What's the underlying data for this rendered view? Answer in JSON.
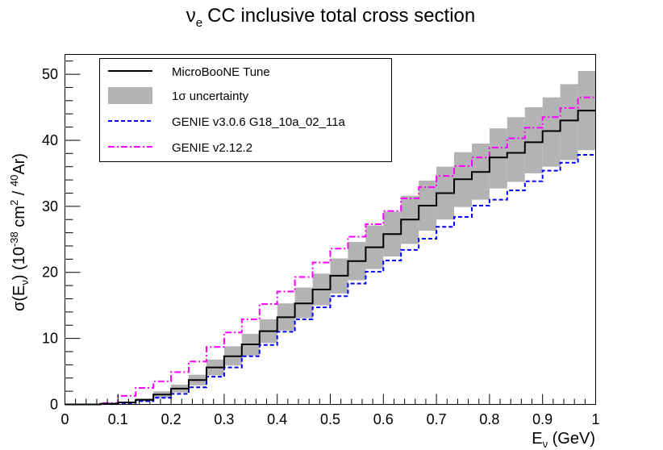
{
  "chart_data": {
    "type": "line",
    "title": {
      "main": "CC inclusive total cross section",
      "symbol": "ν",
      "sub": "e"
    },
    "xlabel": {
      "text": "E",
      "sub": "ν",
      "unit": " (GeV)"
    },
    "ylabel": {
      "pre": "σ(E",
      "sub": "ν",
      "mid": ") (10",
      "exp1": "-38",
      "mid2": " cm",
      "exp2": "2",
      "mid3": " / ",
      "exp3": "40",
      "post": "Ar)"
    },
    "xlim": [
      0,
      1
    ],
    "ylim": [
      0,
      53
    ],
    "x_ticks": [
      0,
      0.1,
      0.2,
      0.3,
      0.4,
      0.5,
      0.6,
      0.7,
      0.8,
      0.9,
      1
    ],
    "x_tick_labels": [
      "0",
      "0.1",
      "0.2",
      "0.3",
      "0.4",
      "0.5",
      "0.6",
      "0.7",
      "0.8",
      "0.9",
      "1"
    ],
    "y_ticks": [
      0,
      10,
      20,
      30,
      40,
      50
    ],
    "y_tick_labels": [
      "0",
      "10",
      "20",
      "30",
      "40",
      "50"
    ],
    "bin_edges": [
      0,
      0.0333,
      0.0667,
      0.1,
      0.1333,
      0.1667,
      0.2,
      0.2333,
      0.2667,
      0.3,
      0.3333,
      0.3667,
      0.4,
      0.4333,
      0.4667,
      0.5,
      0.5333,
      0.5667,
      0.6,
      0.6333,
      0.6667,
      0.7,
      0.7333,
      0.7667,
      0.8,
      0.8333,
      0.8667,
      0.9,
      0.9333,
      0.9667,
      1.0
    ],
    "series": [
      {
        "name": "MicroBooNE Tune",
        "legend": "MicroBooNE Tune",
        "style": "solid",
        "color": "#000000",
        "values": [
          0,
          0,
          0.1,
          0.3,
          0.7,
          1.5,
          2.4,
          3.7,
          5.6,
          7.3,
          9.1,
          11.1,
          13.2,
          15.3,
          17.4,
          19.5,
          21.7,
          23.8,
          25.8,
          28.0,
          30.1,
          32.0,
          34.1,
          35.2,
          37.4,
          38.1,
          39.7,
          41.4,
          43.0,
          44.5
        ]
      },
      {
        "name": "1σ uncertainty",
        "legend": "1σ uncertainty",
        "style": "band",
        "color": "#b3b3b3",
        "low": [
          0,
          0,
          0.08,
          0.2,
          0.5,
          1.0,
          1.8,
          2.9,
          4.4,
          5.9,
          7.4,
          9.3,
          11.2,
          13.1,
          15.0,
          16.8,
          18.8,
          20.5,
          22.4,
          24.3,
          26.3,
          28.0,
          29.9,
          31.0,
          32.7,
          33.7,
          35.0,
          36.0,
          37.0,
          38.5
        ],
        "high": [
          0,
          0,
          0.12,
          0.4,
          0.9,
          2.0,
          3.0,
          4.5,
          6.8,
          8.8,
          10.7,
          12.9,
          15.3,
          17.7,
          19.8,
          22.1,
          24.6,
          27.1,
          29.2,
          31.6,
          33.9,
          36.0,
          38.2,
          39.5,
          41.8,
          43.5,
          45.0,
          46.5,
          48.5,
          50.5
        ]
      },
      {
        "name": "GENIE v3.0.6 G18_10a_02_11a",
        "legend": "GENIE v3.0.6 G18_10a_02_11a",
        "style": "dashed",
        "color": "#0000ff",
        "values": [
          0,
          0,
          0.05,
          0.2,
          0.5,
          1.0,
          1.6,
          2.6,
          4.2,
          5.6,
          7.3,
          9.0,
          11.0,
          12.9,
          14.7,
          16.4,
          18.3,
          20.1,
          21.8,
          23.4,
          25.1,
          26.9,
          28.4,
          30.1,
          31.0,
          32.4,
          33.8,
          35.4,
          36.6,
          37.8
        ]
      },
      {
        "name": "GENIE v2.12.2",
        "legend": "GENIE v2.12.2",
        "style": "dashdot",
        "color": "#ff00ff",
        "values": [
          0,
          0,
          0.2,
          1.3,
          2.5,
          3.5,
          4.9,
          6.5,
          8.7,
          10.9,
          12.9,
          15.2,
          17.1,
          19.3,
          21.5,
          23.6,
          25.4,
          27.3,
          29.3,
          31.2,
          32.9,
          34.6,
          36.1,
          37.4,
          38.9,
          40.3,
          41.9,
          43.5,
          44.9,
          46.5
        ]
      }
    ]
  }
}
